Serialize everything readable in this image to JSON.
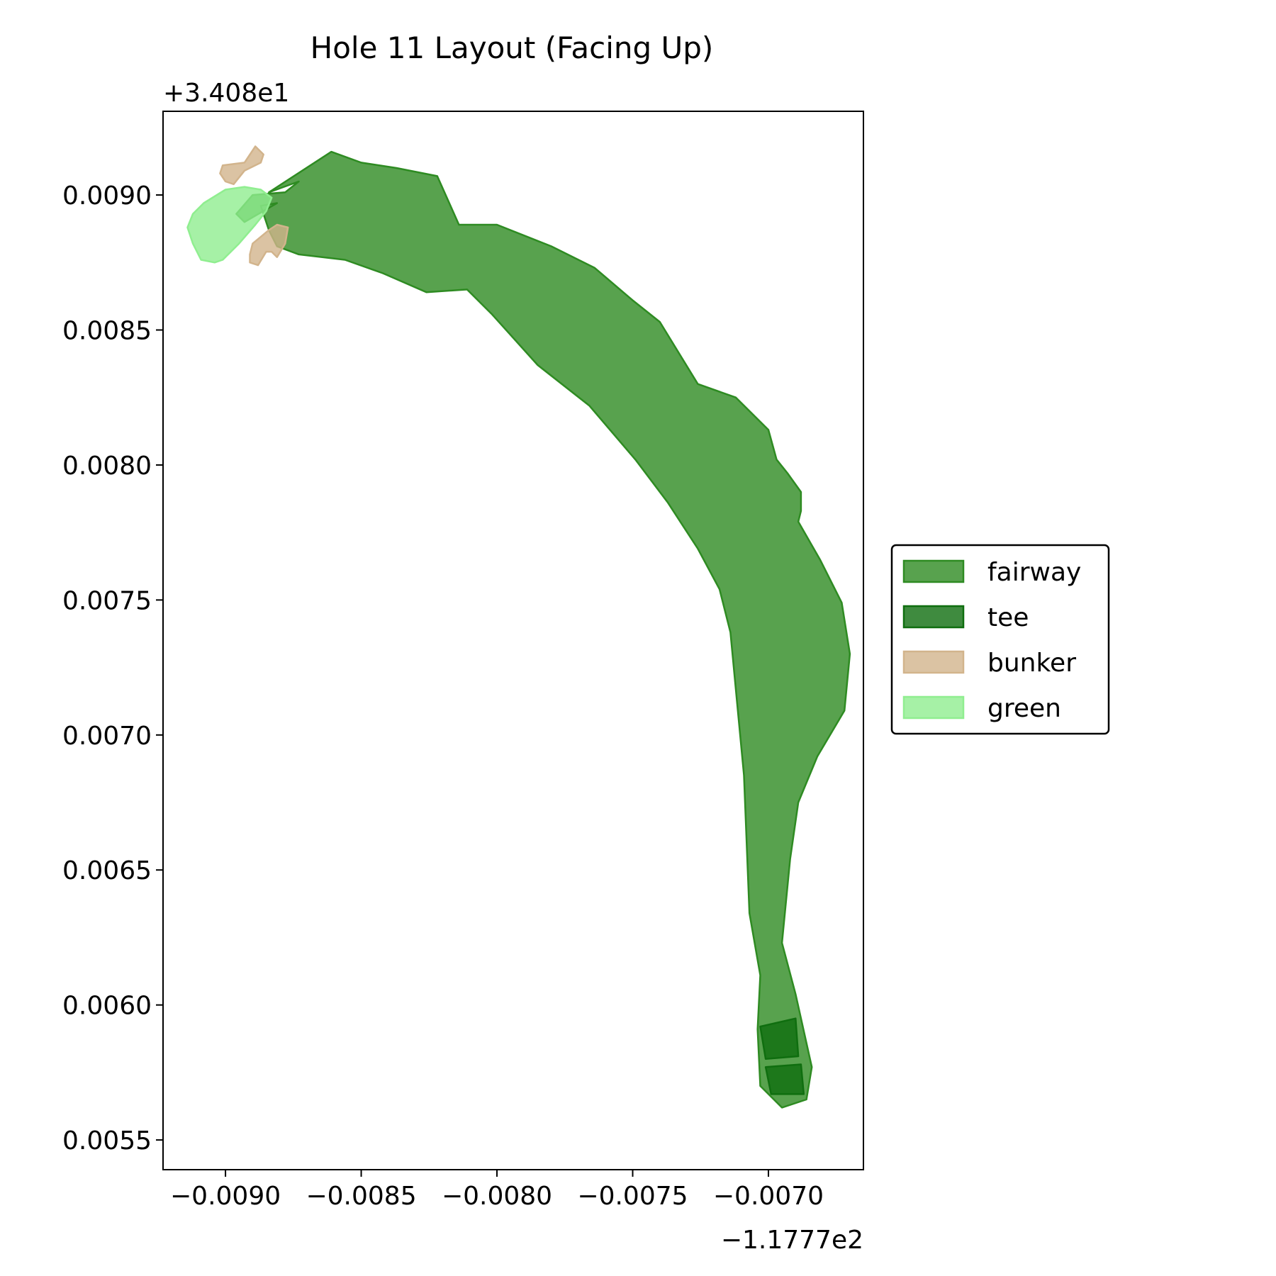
{
  "chart_data": {
    "type": "area",
    "title": "Hole 11 Layout (Facing Up)",
    "x_offset_label": "−1.1777e2",
    "y_offset_label": "+3.408e1",
    "xlim": [
      -0.00923,
      -0.00665
    ],
    "ylim": [
      0.00539,
      0.00931
    ],
    "x_ticks": [
      {
        "value": -0.009,
        "label": "−0.0090"
      },
      {
        "value": -0.0085,
        "label": "−0.0085"
      },
      {
        "value": -0.008,
        "label": "−0.0080"
      },
      {
        "value": -0.0075,
        "label": "−0.0075"
      },
      {
        "value": -0.007,
        "label": "−0.0070"
      }
    ],
    "y_ticks": [
      {
        "value": 0.0055,
        "label": "0.0055"
      },
      {
        "value": 0.006,
        "label": "0.0060"
      },
      {
        "value": 0.0065,
        "label": "0.0065"
      },
      {
        "value": 0.007,
        "label": "0.0070"
      },
      {
        "value": 0.0075,
        "label": "0.0075"
      },
      {
        "value": 0.008,
        "label": "0.0080"
      },
      {
        "value": 0.0085,
        "label": "0.0085"
      },
      {
        "value": 0.009,
        "label": "0.0090"
      }
    ],
    "grid": false,
    "legend_position": "center-right",
    "series": [
      {
        "name": "fairway",
        "fill": "#2e8b22",
        "fill_opacity": 0.8,
        "stroke": "#2e8b22",
        "polygons": [
          [
            [
              -0.00884,
              0.00901
            ],
            [
              -0.00861,
              0.00916
            ],
            [
              -0.0085,
              0.00912
            ],
            [
              -0.00837,
              0.0091
            ],
            [
              -0.00822,
              0.00907
            ],
            [
              -0.00814,
              0.00889
            ],
            [
              -0.008,
              0.00889
            ],
            [
              -0.0078,
              0.00881
            ],
            [
              -0.00764,
              0.00873
            ],
            [
              -0.0075,
              0.00861
            ],
            [
              -0.0074,
              0.00853
            ],
            [
              -0.00726,
              0.0083
            ],
            [
              -0.00712,
              0.00825
            ],
            [
              -0.007,
              0.00813
            ],
            [
              -0.00697,
              0.00802
            ],
            [
              -0.00693,
              0.00797
            ],
            [
              -0.00688,
              0.0079
            ],
            [
              -0.00688,
              0.00783
            ],
            [
              -0.00689,
              0.00779
            ],
            [
              -0.00681,
              0.00765
            ],
            [
              -0.00673,
              0.00749
            ],
            [
              -0.0067,
              0.0073
            ],
            [
              -0.00672,
              0.00709
            ],
            [
              -0.00682,
              0.00692
            ],
            [
              -0.00689,
              0.00675
            ],
            [
              -0.00692,
              0.00654
            ],
            [
              -0.00695,
              0.00623
            ],
            [
              -0.0069,
              0.00604
            ],
            [
              -0.00684,
              0.00577
            ],
            [
              -0.00686,
              0.00565
            ],
            [
              -0.00695,
              0.00562
            ],
            [
              -0.00703,
              0.0057
            ],
            [
              -0.00704,
              0.00591
            ],
            [
              -0.00703,
              0.00611
            ],
            [
              -0.00707,
              0.00634
            ],
            [
              -0.00709,
              0.00685
            ],
            [
              -0.00714,
              0.00738
            ],
            [
              -0.00718,
              0.00754
            ],
            [
              -0.00726,
              0.00769
            ],
            [
              -0.00737,
              0.00786
            ],
            [
              -0.00749,
              0.00802
            ],
            [
              -0.00766,
              0.00822
            ],
            [
              -0.00785,
              0.00837
            ],
            [
              -0.00802,
              0.00856
            ],
            [
              -0.00811,
              0.00865
            ],
            [
              -0.00826,
              0.00864
            ],
            [
              -0.00842,
              0.00871
            ],
            [
              -0.00856,
              0.00876
            ],
            [
              -0.00873,
              0.00878
            ],
            [
              -0.00881,
              0.00881
            ],
            [
              -0.00884,
              0.00887
            ],
            [
              -0.00887,
              0.00896
            ],
            [
              -0.00881,
              0.00897
            ],
            [
              -0.00893,
              0.0089
            ],
            [
              -0.00896,
              0.00893
            ],
            [
              -0.0089,
              0.009
            ],
            [
              -0.00878,
              0.00901
            ],
            [
              -0.00873,
              0.00905
            ]
          ]
        ]
      },
      {
        "name": "tee",
        "fill": "#0f6e0f",
        "fill_opacity": 0.8,
        "stroke": "#0f6e0f",
        "polygons": [
          [
            [
              -0.00703,
              0.00592
            ],
            [
              -0.0069,
              0.00595
            ],
            [
              -0.00689,
              0.00581
            ],
            [
              -0.00701,
              0.0058
            ]
          ],
          [
            [
              -0.00701,
              0.00577
            ],
            [
              -0.00688,
              0.00578
            ],
            [
              -0.00687,
              0.00567
            ],
            [
              -0.00699,
              0.00567
            ]
          ]
        ]
      },
      {
        "name": "bunker",
        "fill": "#d2b48c",
        "fill_opacity": 0.8,
        "stroke": "#d2b48c",
        "polygons": [
          [
            [
              -0.00901,
              0.00911
            ],
            [
              -0.00893,
              0.00912
            ],
            [
              -0.00889,
              0.00918
            ],
            [
              -0.00886,
              0.00915
            ],
            [
              -0.00887,
              0.00912
            ],
            [
              -0.00893,
              0.00909
            ],
            [
              -0.00897,
              0.00904
            ],
            [
              -0.009,
              0.00905
            ],
            [
              -0.00902,
              0.00908
            ]
          ],
          [
            [
              -0.0089,
              0.00882
            ],
            [
              -0.00884,
              0.00887
            ],
            [
              -0.00881,
              0.00889
            ],
            [
              -0.00877,
              0.00888
            ],
            [
              -0.00878,
              0.00882
            ],
            [
              -0.00881,
              0.00877
            ],
            [
              -0.00883,
              0.00879
            ],
            [
              -0.00885,
              0.00879
            ],
            [
              -0.00888,
              0.00874
            ],
            [
              -0.00891,
              0.00875
            ],
            [
              -0.00891,
              0.00878
            ]
          ]
        ]
      },
      {
        "name": "green",
        "fill": "#90ee90",
        "fill_opacity": 0.8,
        "stroke": "#90ee90",
        "polygons": [
          [
            [
              -0.00908,
              0.00897
            ],
            [
              -0.009,
              0.00902
            ],
            [
              -0.00893,
              0.00903
            ],
            [
              -0.00887,
              0.00902
            ],
            [
              -0.00883,
              0.00899
            ],
            [
              -0.00885,
              0.00894
            ],
            [
              -0.00889,
              0.00889
            ],
            [
              -0.00895,
              0.00882
            ],
            [
              -0.00901,
              0.00876
            ],
            [
              -0.00904,
              0.00875
            ],
            [
              -0.00909,
              0.00876
            ],
            [
              -0.00912,
              0.00882
            ],
            [
              -0.00914,
              0.00888
            ],
            [
              -0.00912,
              0.00893
            ]
          ]
        ]
      }
    ]
  }
}
